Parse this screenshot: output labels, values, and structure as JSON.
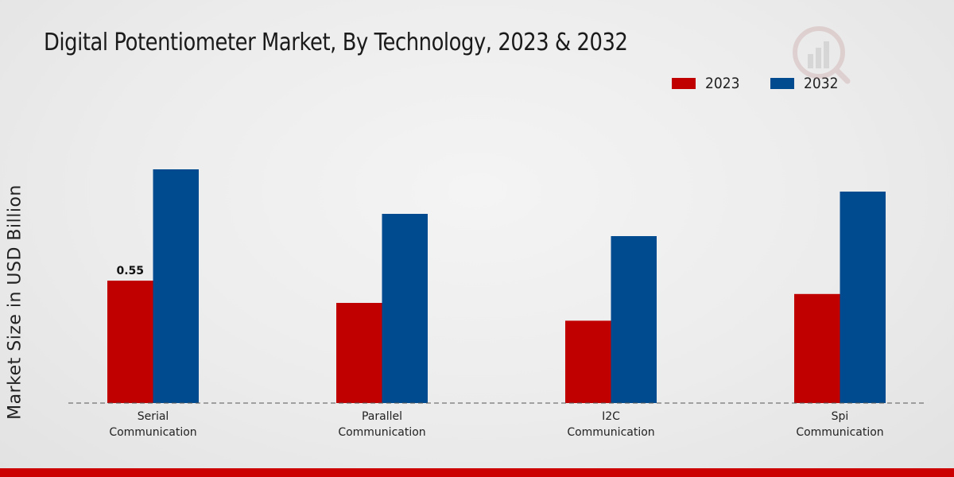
{
  "colors": {
    "series_2023": "#c00000",
    "series_2032": "#004a8f",
    "bottom_bar": "#cc0000"
  },
  "chart_data": {
    "type": "bar",
    "title": "Digital Potentiometer Market, By Technology, 2023 & 2032",
    "xlabel": "",
    "ylabel": "Market Size in USD Billion",
    "ylim": [
      0,
      1.4
    ],
    "grid": false,
    "legend_position": "top-right",
    "categories": [
      [
        "Serial",
        "Communication"
      ],
      [
        "Parallel",
        "Communication"
      ],
      [
        "I2C",
        "Communication"
      ],
      [
        "Spi",
        "Communication"
      ]
    ],
    "series": [
      {
        "name": "2023",
        "color": "#c00000",
        "values": [
          0.55,
          0.45,
          0.37,
          0.49
        ]
      },
      {
        "name": "2032",
        "color": "#004a8f",
        "values": [
          1.05,
          0.85,
          0.75,
          0.95
        ]
      }
    ],
    "annotations": [
      {
        "series": 0,
        "index": 0,
        "text": "0.55"
      }
    ]
  }
}
